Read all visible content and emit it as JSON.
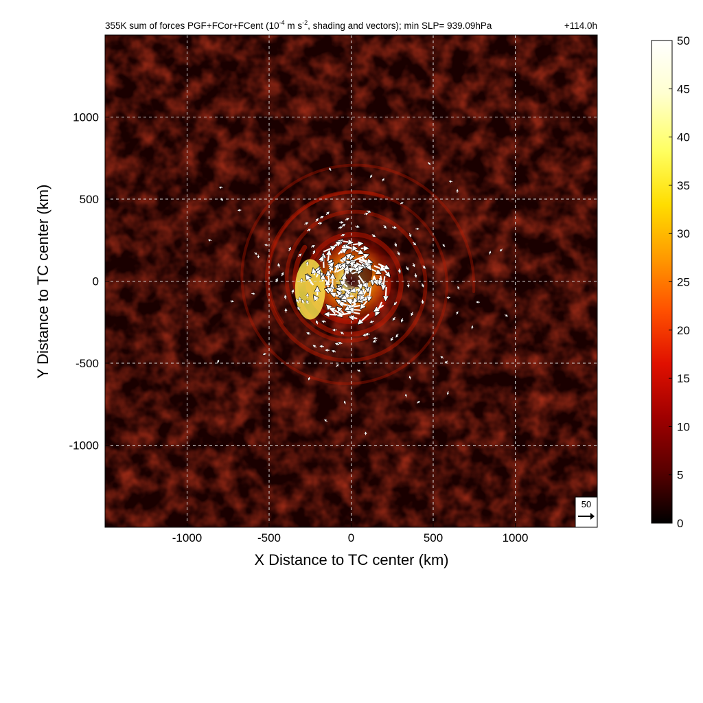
{
  "chart_data": {
    "type": "heatmap",
    "title": {
      "main": "355K sum of forces PGF+FCor+FCent (10",
      "exponent": "-4",
      "middle": " m s",
      "exponent2": "-2",
      "rest": ", shading and vectors); min SLP= 939.09hPa",
      "time": "+114.0h"
    },
    "xlabel": "X Distance to TC center (km)",
    "ylabel": "Y Distance to TC center (km)",
    "xlim": [
      -1500,
      1500
    ],
    "ylim": [
      -1500,
      1500
    ],
    "xticks": [
      -1000,
      -500,
      0,
      500,
      1000
    ],
    "yticks": [
      -1000,
      -500,
      0,
      500,
      1000
    ],
    "grid": true,
    "colorbar": {
      "range": [
        0,
        50
      ],
      "ticks": [
        0,
        5,
        10,
        15,
        20,
        25,
        30,
        35,
        40,
        45,
        50
      ],
      "colormap": [
        "#000000",
        "#5a0000",
        "#a00000",
        "#e01000",
        "#ff5000",
        "#ff9a00",
        "#ffdd00",
        "#ffff60",
        "#ffffd0",
        "#ffffff"
      ]
    },
    "reference_vector": {
      "label": "50",
      "magnitude": 50
    },
    "features": {
      "center": [
        0,
        0
      ],
      "inner_core_radius_km": 250,
      "spiral_band_radii_km": [
        350,
        550,
        750
      ],
      "max_value_region": {
        "x": -250,
        "y": -50,
        "value": 45
      }
    }
  }
}
